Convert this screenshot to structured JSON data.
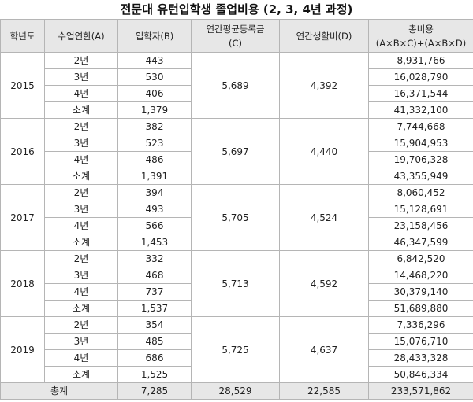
{
  "title": "전문대 유턴입학생 졸업비용 (2, 3, 4년 과정)",
  "headers": {
    "year": "학년도",
    "period": "수업연한(A)",
    "students": "입학자(B)",
    "tuition_line1": "연간평균등록금",
    "tuition_line2": "(C)",
    "living": "연간생활비(D)",
    "total_line1": "총비용",
    "total_line2": "(A×B×C)+(A×B×D)"
  },
  "groups": [
    {
      "year": "2015",
      "tuition": "5,689",
      "living": "4,392",
      "rows": [
        {
          "period": "2년",
          "students": "443",
          "total": "8,931,766"
        },
        {
          "period": "3년",
          "students": "530",
          "total": "16,028,790"
        },
        {
          "period": "4년",
          "students": "406",
          "total": "16,371,544"
        },
        {
          "period": "소계",
          "students": "1,379",
          "total": "41,332,100"
        }
      ]
    },
    {
      "year": "2016",
      "tuition": "5,697",
      "living": "4,440",
      "rows": [
        {
          "period": "2년",
          "students": "382",
          "total": "7,744,668"
        },
        {
          "period": "3년",
          "students": "523",
          "total": "15,904,953"
        },
        {
          "period": "4년",
          "students": "486",
          "total": "19,706,328"
        },
        {
          "period": "소계",
          "students": "1,391",
          "total": "43,355,949"
        }
      ]
    },
    {
      "year": "2017",
      "tuition": "5,705",
      "living": "4,524",
      "rows": [
        {
          "period": "2년",
          "students": "394",
          "total": "8,060,452"
        },
        {
          "period": "3년",
          "students": "493",
          "total": "15,128,691"
        },
        {
          "period": "4년",
          "students": "566",
          "total": "23,158,456"
        },
        {
          "period": "소계",
          "students": "1,453",
          "total": "46,347,599"
        }
      ]
    },
    {
      "year": "2018",
      "tuition": "5,713",
      "living": "4,592",
      "rows": [
        {
          "period": "2년",
          "students": "332",
          "total": "6,842,520"
        },
        {
          "period": "3년",
          "students": "468",
          "total": "14,468,220"
        },
        {
          "period": "4년",
          "students": "737",
          "total": "30,379,140"
        },
        {
          "period": "소계",
          "students": "1,537",
          "total": "51,689,880"
        }
      ]
    },
    {
      "year": "2019",
      "tuition": "5,725",
      "living": "4,637",
      "rows": [
        {
          "period": "2년",
          "students": "354",
          "total": "7,336,296"
        },
        {
          "period": "3년",
          "students": "485",
          "total": "15,076,710"
        },
        {
          "period": "4년",
          "students": "686",
          "total": "28,433,328"
        },
        {
          "period": "소계",
          "students": "1,525",
          "total": "50,846,334"
        }
      ]
    }
  ],
  "grand_total": {
    "label": "총계",
    "students": "7,285",
    "tuition": "28,529",
    "living": "22,585",
    "total": "233,571,862"
  }
}
